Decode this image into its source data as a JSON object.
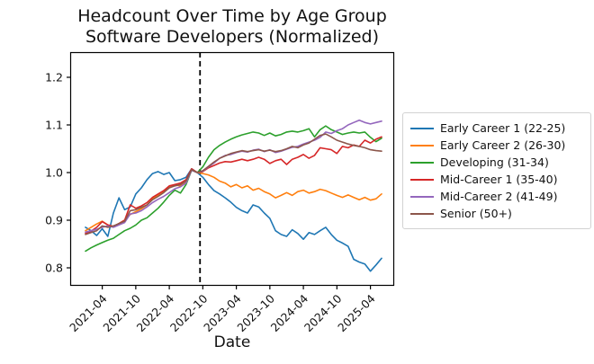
{
  "chart_data": {
    "type": "line",
    "title": "Headcount Over Time by Age Group",
    "subtitle": "Software Developers (Normalized)",
    "xlabel": "Date",
    "ylabel": "",
    "grid": false,
    "legend_position": "right-outside",
    "background_color": "#ffffff",
    "axis_color": "#000000",
    "ylim": [
      0.762,
      1.253
    ],
    "y_ticks": [
      0.8,
      0.9,
      1.0,
      1.1,
      1.2
    ],
    "y_tick_labels": [
      "0.8",
      "0.9",
      "1.0",
      "1.1",
      "1.2"
    ],
    "x_tick_labels": [
      "2021-04",
      "2021-10",
      "2022-04",
      "2022-10",
      "2023-04",
      "2023-10",
      "2024-04",
      "2024-10",
      "2025-04"
    ],
    "annotations": {
      "vline": {
        "date": "2022-09",
        "style": "dashed",
        "color": "#000000",
        "meaning": "normalization point (all series = 1.0)"
      }
    },
    "x": [
      "2021-01",
      "2021-02",
      "2021-03",
      "2021-04",
      "2021-05",
      "2021-06",
      "2021-07",
      "2021-08",
      "2021-09",
      "2021-10",
      "2021-11",
      "2021-12",
      "2022-01",
      "2022-02",
      "2022-03",
      "2022-04",
      "2022-05",
      "2022-06",
      "2022-07",
      "2022-08",
      "2022-09",
      "2022-10",
      "2022-11",
      "2022-12",
      "2023-01",
      "2023-02",
      "2023-03",
      "2023-04",
      "2023-05",
      "2023-06",
      "2023-07",
      "2023-08",
      "2023-09",
      "2023-10",
      "2023-11",
      "2023-12",
      "2024-01",
      "2024-02",
      "2024-03",
      "2024-04",
      "2024-05",
      "2024-06",
      "2024-07",
      "2024-08",
      "2024-09",
      "2024-10",
      "2024-11",
      "2024-12",
      "2025-01",
      "2025-02",
      "2025-03",
      "2025-04",
      "2025-05",
      "2025-06"
    ],
    "series": [
      {
        "name": "Early Career 1 (22-25)",
        "color": "#1f77b4",
        "values": [
          0.885,
          0.878,
          0.868,
          0.882,
          0.866,
          0.915,
          0.947,
          0.922,
          0.928,
          0.955,
          0.968,
          0.985,
          0.998,
          1.002,
          0.996,
          1.0,
          0.983,
          0.985,
          0.99,
          1.008,
          1.0,
          0.99,
          0.975,
          0.962,
          0.955,
          0.947,
          0.938,
          0.927,
          0.92,
          0.915,
          0.932,
          0.928,
          0.915,
          0.904,
          0.878,
          0.87,
          0.866,
          0.88,
          0.872,
          0.86,
          0.874,
          0.87,
          0.878,
          0.885,
          0.87,
          0.858,
          0.852,
          0.845,
          0.818,
          0.812,
          0.808,
          0.793,
          0.806,
          0.82
        ]
      },
      {
        "name": "Early Career 2 (26-30)",
        "color": "#ff7f0e",
        "values": [
          0.878,
          0.885,
          0.892,
          0.898,
          0.89,
          0.887,
          0.893,
          0.9,
          0.912,
          0.918,
          0.924,
          0.932,
          0.945,
          0.953,
          0.96,
          0.97,
          0.974,
          0.972,
          0.98,
          1.007,
          1.0,
          0.998,
          0.995,
          0.99,
          0.982,
          0.978,
          0.97,
          0.975,
          0.968,
          0.972,
          0.963,
          0.967,
          0.96,
          0.955,
          0.947,
          0.952,
          0.958,
          0.952,
          0.96,
          0.963,
          0.957,
          0.96,
          0.965,
          0.962,
          0.957,
          0.952,
          0.948,
          0.953,
          0.948,
          0.943,
          0.948,
          0.942,
          0.945,
          0.955
        ]
      },
      {
        "name": "Developing (31-34)",
        "color": "#2ca02c",
        "values": [
          0.835,
          0.842,
          0.848,
          0.853,
          0.858,
          0.862,
          0.87,
          0.878,
          0.883,
          0.89,
          0.9,
          0.905,
          0.915,
          0.925,
          0.938,
          0.952,
          0.963,
          0.957,
          0.975,
          1.005,
          1.0,
          1.012,
          1.032,
          1.048,
          1.057,
          1.064,
          1.07,
          1.075,
          1.079,
          1.082,
          1.085,
          1.083,
          1.078,
          1.083,
          1.077,
          1.08,
          1.085,
          1.087,
          1.085,
          1.088,
          1.092,
          1.075,
          1.09,
          1.098,
          1.09,
          1.085,
          1.08,
          1.083,
          1.085,
          1.083,
          1.085,
          1.074,
          1.065,
          1.072
        ]
      },
      {
        "name": "Mid-Career 1 (35-40)",
        "color": "#d62728",
        "values": [
          0.872,
          0.877,
          0.885,
          0.897,
          0.89,
          0.887,
          0.893,
          0.9,
          0.932,
          0.925,
          0.93,
          0.937,
          0.948,
          0.955,
          0.962,
          0.972,
          0.975,
          0.978,
          0.985,
          1.008,
          1.0,
          1.002,
          1.01,
          1.015,
          1.02,
          1.023,
          1.022,
          1.025,
          1.028,
          1.025,
          1.028,
          1.032,
          1.028,
          1.019,
          1.025,
          1.028,
          1.017,
          1.028,
          1.032,
          1.038,
          1.03,
          1.036,
          1.052,
          1.05,
          1.048,
          1.04,
          1.055,
          1.052,
          1.058,
          1.055,
          1.068,
          1.062,
          1.07,
          1.075
        ]
      },
      {
        "name": "Mid-Career 2 (41-49)",
        "color": "#9467bd",
        "values": [
          0.875,
          0.878,
          0.881,
          0.885,
          0.888,
          0.885,
          0.89,
          0.895,
          0.913,
          0.915,
          0.92,
          0.928,
          0.937,
          0.944,
          0.95,
          0.958,
          0.966,
          0.97,
          0.978,
          1.005,
          1.0,
          1.003,
          1.012,
          1.02,
          1.03,
          1.036,
          1.038,
          1.042,
          1.045,
          1.043,
          1.047,
          1.049,
          1.044,
          1.048,
          1.042,
          1.045,
          1.049,
          1.053,
          1.055,
          1.06,
          1.064,
          1.068,
          1.074,
          1.085,
          1.082,
          1.088,
          1.092,
          1.1,
          1.105,
          1.11,
          1.105,
          1.102,
          1.105,
          1.108
        ]
      },
      {
        "name": "Senior (50+)",
        "color": "#8c564b",
        "values": [
          0.87,
          0.874,
          0.878,
          0.888,
          0.885,
          0.888,
          0.893,
          0.898,
          0.92,
          0.922,
          0.927,
          0.932,
          0.943,
          0.95,
          0.958,
          0.968,
          0.972,
          0.975,
          0.982,
          1.006,
          1.0,
          1.004,
          1.013,
          1.022,
          1.03,
          1.035,
          1.04,
          1.043,
          1.046,
          1.044,
          1.046,
          1.048,
          1.045,
          1.047,
          1.044,
          1.046,
          1.05,
          1.055,
          1.052,
          1.058,
          1.062,
          1.07,
          1.078,
          1.081,
          1.075,
          1.068,
          1.064,
          1.06,
          1.057,
          1.055,
          1.052,
          1.048,
          1.046,
          1.045
        ]
      }
    ]
  }
}
